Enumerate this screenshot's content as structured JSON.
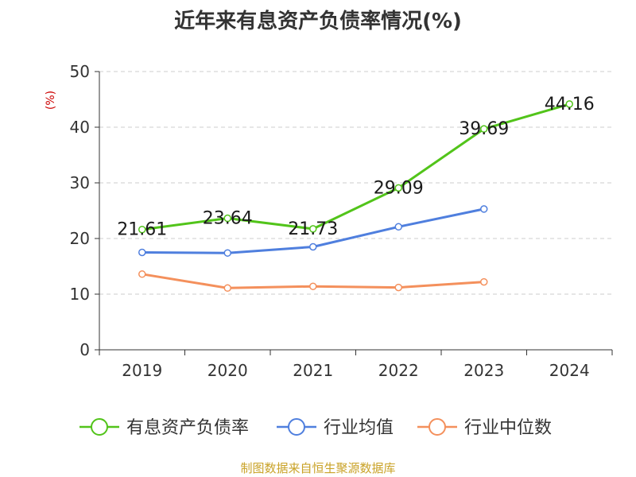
{
  "title": "近年来有息资产负债率情况(%)",
  "source_note": "制图数据来自恒生聚源数据库",
  "colors": {
    "debt_ratio": "#52c41a",
    "industry_avg": "#4f7fde",
    "industry_median": "#f4905c",
    "axis": "#333333",
    "grid": "#cccccc",
    "unit": "#cc0000",
    "source": "#c9a227"
  },
  "chart_data": {
    "type": "line",
    "ylabel": "(%)",
    "ylim": [
      0,
      50
    ],
    "yticks": [
      0,
      10,
      20,
      30,
      40,
      50
    ],
    "grid": true,
    "legend_position": "bottom",
    "categories": [
      "2019",
      "2020",
      "2021",
      "2022",
      "2023",
      "2024"
    ],
    "series": [
      {
        "name": "有息资产负债率",
        "values": [
          21.61,
          23.64,
          21.73,
          29.09,
          39.69,
          44.16
        ],
        "labels": [
          "21.61",
          "23.64",
          "21.73",
          "29.09",
          "39.69",
          "44.16"
        ],
        "show_labels": true
      },
      {
        "name": "行业均值",
        "values": [
          17.5,
          17.4,
          18.5,
          22.1,
          25.3,
          null
        ],
        "show_labels": false
      },
      {
        "name": "行业中位数",
        "values": [
          13.6,
          11.1,
          11.4,
          11.2,
          12.2,
          null
        ],
        "show_labels": false
      }
    ]
  }
}
